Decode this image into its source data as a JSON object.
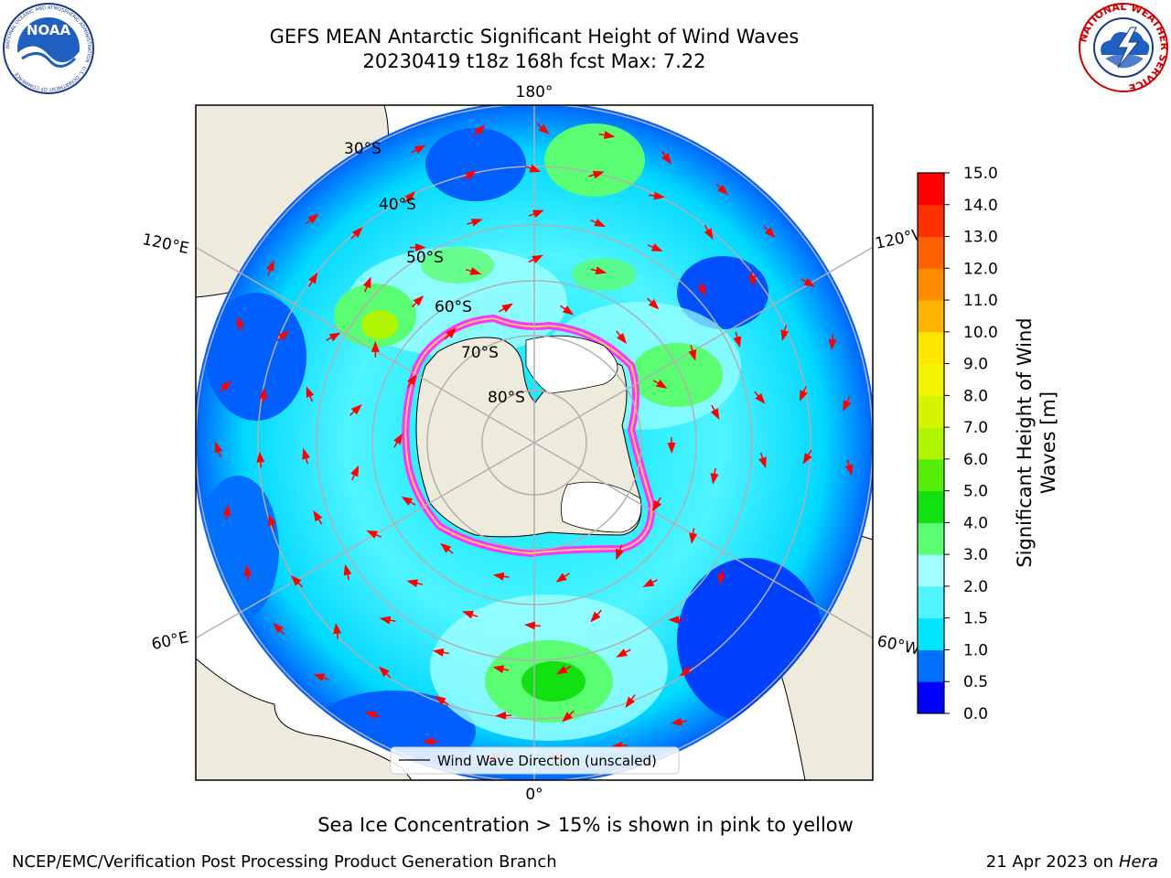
{
  "title": {
    "line1": "GEFS MEAN Antarctic Significant Height of Wind Waves",
    "line2": "20230419 t18z 168h fcst   Max: 7.22"
  },
  "logos": {
    "left": "NOAA",
    "left_ring": "NATIONAL OCEANIC AND ATMOSPHERIC ADMINISTRATION · U.S. DEPARTMENT OF COMMERCE ·",
    "right_ring": "NATIONAL WEATHER SERVICE"
  },
  "map": {
    "longitude_labels": {
      "top": "180°",
      "bottom": "0°",
      "upper_left": "120°E",
      "upper_right": "120°W",
      "lower_left": "60°E",
      "lower_right": "60°W"
    },
    "latitude_labels": [
      "30°S",
      "40°S",
      "50°S",
      "60°S",
      "70°S",
      "80°S"
    ],
    "legend": "Wind Wave Direction (unscaled)"
  },
  "colorbar": {
    "label": "Significant Height of Wind Waves [m]",
    "ticks": [
      "0.0",
      "0.5",
      "1.0",
      "1.5",
      "2.0",
      "3.0",
      "4.0",
      "5.0",
      "6.0",
      "7.0",
      "8.0",
      "9.0",
      "10.0",
      "11.0",
      "12.0",
      "13.0",
      "14.0",
      "15.0"
    ],
    "colors": [
      "#0000ff",
      "#0072ff",
      "#00e6ff",
      "#4ff4ff",
      "#a0ffff",
      "#5bfd72",
      "#11e111",
      "#55ee08",
      "#b0f400",
      "#d6f400",
      "#f4f400",
      "#ffe600",
      "#ffb400",
      "#ff8c00",
      "#ff6000",
      "#ff3000",
      "#ff0000"
    ]
  },
  "note": "Sea Ice Concentration > 15% is shown in pink to yellow",
  "footer": {
    "left": "NCEP/EMC/Verification Post Processing Product Generation Branch",
    "right_date": "21 Apr 2023 on ",
    "right_machine": "Hera"
  }
}
